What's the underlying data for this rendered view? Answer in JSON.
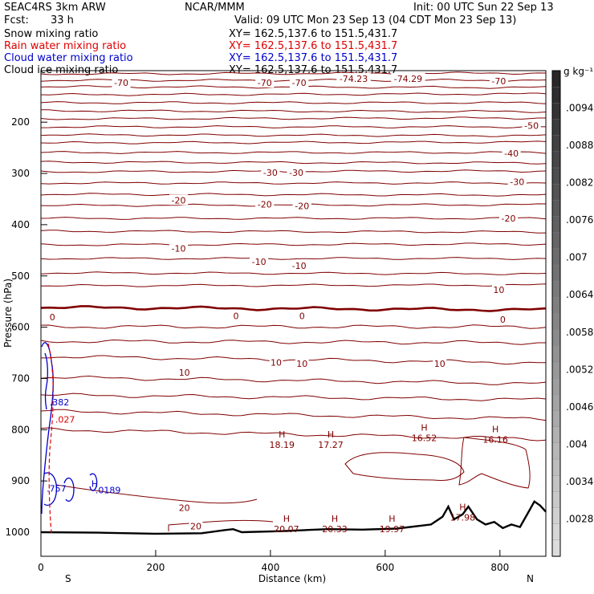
{
  "header": {
    "model": "SEAC4RS  3km ARW",
    "org": "NCAR/MMM",
    "init": "Init: 00 UTC Sun 22 Sep 13",
    "fcst_label": "Fcst:",
    "fcst_value": "33 h",
    "valid": "Valid: 09 UTC Mon 23 Sep 13 (04 CDT Mon 23 Sep 13)"
  },
  "fields": [
    {
      "name": "Snow mixing ratio",
      "xy": "XY= 162.5,137.6 to 151.5,431.7",
      "color": "#000000"
    },
    {
      "name": "Rain water mixing ratio",
      "xy": "XY= 162.5,137.6 to 151.5,431.7",
      "color": "#e00000"
    },
    {
      "name": "Cloud water mixing ratio",
      "xy": "XY= 162.5,137.6 to 151.5,431.7",
      "color": "#0000cc"
    },
    {
      "name": "Cloud ice mixing ratio",
      "xy": "XY= 162.5,137.6 to 151.5,431.7",
      "color": "#000000"
    }
  ],
  "colors": {
    "temperature": "#800000",
    "terrain": "#000000",
    "rain": "#e00000",
    "cloud_water": "#0000cc"
  },
  "chart_data": {
    "type": "cross-section",
    "xlabel": "Distance (km)",
    "ylabel": "Pressure (hPa)",
    "xlim": [
      0,
      880
    ],
    "ylim": [
      1000,
      100
    ],
    "xticks": [
      "0",
      "200",
      "400",
      "600",
      "800"
    ],
    "xtick_values": [
      0,
      200,
      400,
      600,
      800
    ],
    "yticks": [
      "200",
      "300",
      "400",
      "500",
      "600",
      "700",
      "800",
      "900",
      "1000"
    ],
    "ytick_values": [
      200,
      300,
      400,
      500,
      600,
      700,
      800,
      900,
      1000
    ],
    "end_labels": {
      "left": "S",
      "right": "N"
    },
    "colorbar": {
      "unit": "g kg⁻¹",
      "labels": [
        ".0094",
        ".0088",
        ".0082",
        ".0076",
        ".007",
        ".0064",
        ".0058",
        ".0052",
        ".0046",
        ".004",
        ".0034",
        ".0028"
      ],
      "label_values": [
        0.0094,
        0.0088,
        0.0082,
        0.0076,
        0.007,
        0.0064,
        0.0058,
        0.0052,
        0.0046,
        0.004,
        0.0034,
        0.0028
      ]
    },
    "temperature_contour_labels": [
      {
        "text": "-74.23",
        "x": 545,
        "p": 115
      },
      {
        "text": "-74.29",
        "x": 640,
        "p": 115
      },
      {
        "text": "-70",
        "x": 140,
        "p": 123
      },
      {
        "text": "-70",
        "x": 390,
        "p": 123
      },
      {
        "text": "-70",
        "x": 450,
        "p": 123
      },
      {
        "text": "-70",
        "x": 798,
        "p": 120
      },
      {
        "text": "-50",
        "x": 855,
        "p": 207
      },
      {
        "text": "-40",
        "x": 820,
        "p": 261
      },
      {
        "text": "-30",
        "x": 400,
        "p": 298
      },
      {
        "text": "-30",
        "x": 445,
        "p": 298
      },
      {
        "text": "-30",
        "x": 830,
        "p": 316
      },
      {
        "text": "-20",
        "x": 240,
        "p": 352
      },
      {
        "text": "-20",
        "x": 390,
        "p": 360
      },
      {
        "text": "-20",
        "x": 455,
        "p": 363
      },
      {
        "text": "-20",
        "x": 815,
        "p": 388
      },
      {
        "text": "-10",
        "x": 240,
        "p": 446
      },
      {
        "text": "-10",
        "x": 380,
        "p": 472
      },
      {
        "text": "-10",
        "x": 450,
        "p": 480
      },
      {
        "text": "10",
        "x": 798,
        "p": 527
      },
      {
        "text": "0",
        "x": 20,
        "p": 580
      },
      {
        "text": "0",
        "x": 340,
        "p": 578
      },
      {
        "text": "0",
        "x": 455,
        "p": 578
      },
      {
        "text": "0",
        "x": 805,
        "p": 585
      },
      {
        "text": "10",
        "x": 250,
        "p": 688
      },
      {
        "text": "10",
        "x": 410,
        "p": 669
      },
      {
        "text": "10",
        "x": 455,
        "p": 671
      },
      {
        "text": "10",
        "x": 695,
        "p": 671
      },
      {
        "text": "20",
        "x": 250,
        "p": 952
      },
      {
        "text": "20",
        "x": 270,
        "p": 988
      }
    ],
    "highs": [
      {
        "value": "18.19",
        "x": 420,
        "p": 818
      },
      {
        "value": "17.27",
        "x": 505,
        "p": 818
      },
      {
        "value": "16.52",
        "x": 668,
        "p": 805
      },
      {
        "value": "16.16",
        "x": 792,
        "p": 808
      },
      {
        "value": "20.07",
        "x": 428,
        "p": 983
      },
      {
        "value": "20.33",
        "x": 512,
        "p": 983
      },
      {
        "value": "19.97",
        "x": 612,
        "p": 983
      },
      {
        "value": "17.98",
        "x": 735,
        "p": 960
      }
    ],
    "other_labels": [
      {
        "text": ".382",
        "x": 15,
        "p": 746,
        "color": "#0000cc"
      },
      {
        "text": ".027",
        "x": 25,
        "p": 780,
        "color": "#e00000"
      },
      {
        "text": ".757",
        "x": 10,
        "p": 915,
        "color": "#0000cc"
      },
      {
        "text": "H",
        "x": 88,
        "p": 905,
        "color": "#0000cc"
      },
      {
        "text": ".0189",
        "x": 95,
        "p": 918,
        "color": "#0000cc"
      }
    ]
  }
}
